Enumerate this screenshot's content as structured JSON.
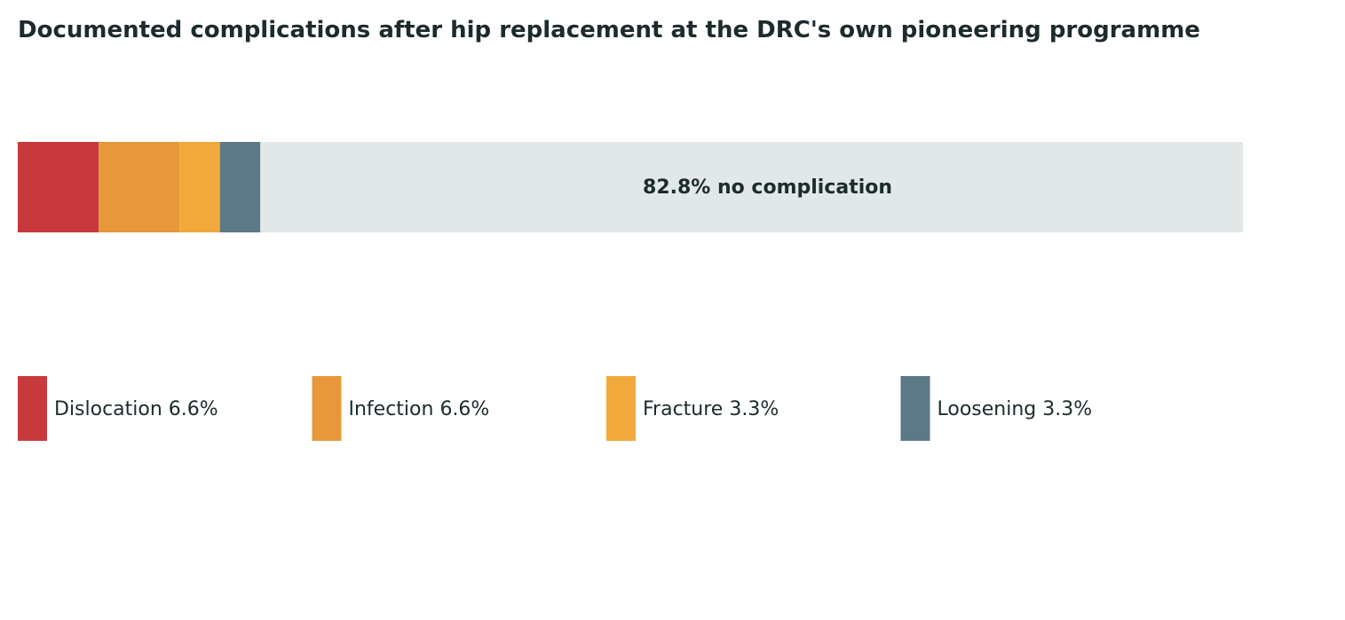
{
  "chart_data": {
    "type": "stacked_bar",
    "title": "Documented complications after hip replacement at the DRC's own pioneering programme",
    "values": [
      6.6,
      6.6,
      3.3,
      3.3
    ],
    "value_labels": [
      "Dislocation 6.6%",
      "Infection 6.6%",
      "Fracture 3.3%",
      "Loosening 3.3%"
    ],
    "colors": [
      "#c8393e",
      "#e8973a",
      "#f2a93b",
      "#5c7a86"
    ],
    "remainder": {
      "value": 82.8,
      "label": "82.8% no complication",
      "color": "#e2e8e8"
    },
    "xlim": [
      0,
      100
    ],
    "legend": "bottom"
  }
}
